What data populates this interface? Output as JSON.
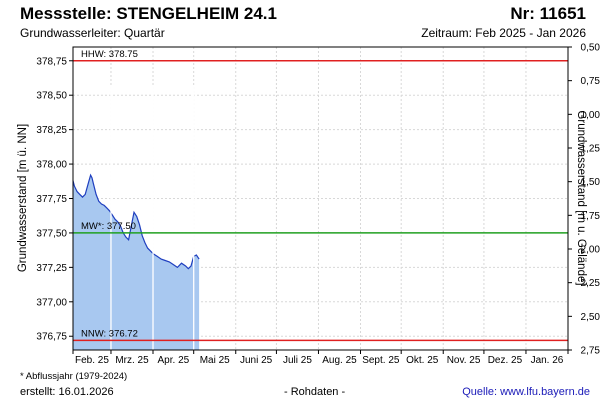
{
  "header": {
    "title": "Messstelle: STENGELHEIM 24.1",
    "station_nr": "Nr: 11651",
    "aquifer": "Grundwasserleiter: Quartär",
    "period": "Zeitraum: Feb 2025 - Jan 2026"
  },
  "footer": {
    "footnote": "* Abflussjahr (1979-2024)",
    "created": "erstellt:  16.01.2026",
    "rawdata": "- Rohdaten -",
    "source": "Quelle:  www.lfu.bayern.de"
  },
  "chart_data": {
    "type": "area",
    "ylabel": "Grundwasserstand [m ü. NN]",
    "y2label": "Grundwasserstand [m u. Gelände]",
    "ylim": [
      376.65,
      378.85
    ],
    "y2lim": [
      2.75,
      0.5
    ],
    "yticks": [
      "378,75",
      "378,50",
      "378,25",
      "378,00",
      "377,75",
      "377,50",
      "377,25",
      "377,00",
      "376,75"
    ],
    "y2ticks": [
      "0,50",
      "0,75",
      "1,00",
      "1,25",
      "1,50",
      "1,75",
      "2,00",
      "2,25",
      "2,50",
      "2,75"
    ],
    "xticks": [
      "Feb. 25",
      "Mrz. 25",
      "Apr. 25",
      "Mai 25",
      "Juni 25",
      "Juli 25",
      "Aug. 25",
      "Sept. 25",
      "Okt. 25",
      "Nov. 25",
      "Dez. 25",
      "Jan. 26"
    ],
    "grid": true,
    "series_color": "#1f3fbf",
    "fill_color": "#a8c8f0",
    "series": [
      {
        "x": [
          "2025-02-01",
          "2025-02-02",
          "2025-02-04",
          "2025-02-06",
          "2025-02-08",
          "2025-02-10",
          "2025-02-12",
          "2025-02-14",
          "2025-02-15",
          "2025-02-16",
          "2025-02-18",
          "2025-02-20",
          "2025-02-22",
          "2025-02-24",
          "2025-02-26",
          "2025-02-28",
          "2025-03-02",
          "2025-03-04",
          "2025-03-06",
          "2025-03-08",
          "2025-03-10",
          "2025-03-12",
          "2025-03-14",
          "2025-03-16",
          "2025-03-18",
          "2025-03-20",
          "2025-03-22",
          "2025-03-24",
          "2025-03-26",
          "2025-03-28",
          "2025-03-30",
          "2025-04-01",
          "2025-04-04",
          "2025-04-07",
          "2025-04-10",
          "2025-04-13",
          "2025-04-16",
          "2025-04-19",
          "2025-04-22",
          "2025-04-25",
          "2025-04-27",
          "2025-04-29",
          "2025-05-01",
          "2025-05-03",
          "2025-05-05"
        ],
        "values": [
          377.88,
          377.84,
          377.8,
          377.78,
          377.76,
          377.78,
          377.85,
          377.92,
          377.9,
          377.86,
          377.78,
          377.73,
          377.71,
          377.7,
          377.68,
          377.66,
          377.63,
          377.6,
          377.58,
          377.55,
          377.5,
          377.47,
          377.45,
          377.55,
          377.65,
          377.62,
          377.56,
          377.48,
          377.43,
          377.39,
          377.37,
          377.35,
          377.33,
          377.31,
          377.3,
          377.29,
          377.27,
          377.25,
          377.28,
          377.26,
          377.24,
          377.26,
          377.33,
          377.34,
          377.31
        ]
      }
    ],
    "reference_lines": [
      {
        "label": "HHW: 378.75",
        "value": 378.75,
        "color": "#e02020"
      },
      {
        "label": "MW*: 377.50",
        "value": 377.5,
        "color": "#20a020"
      },
      {
        "label": "NNW: 376.72",
        "value": 376.72,
        "color": "#e02020"
      }
    ],
    "gaps": [
      "2025-03-01",
      "2025-04-01",
      "2025-05-01"
    ]
  }
}
